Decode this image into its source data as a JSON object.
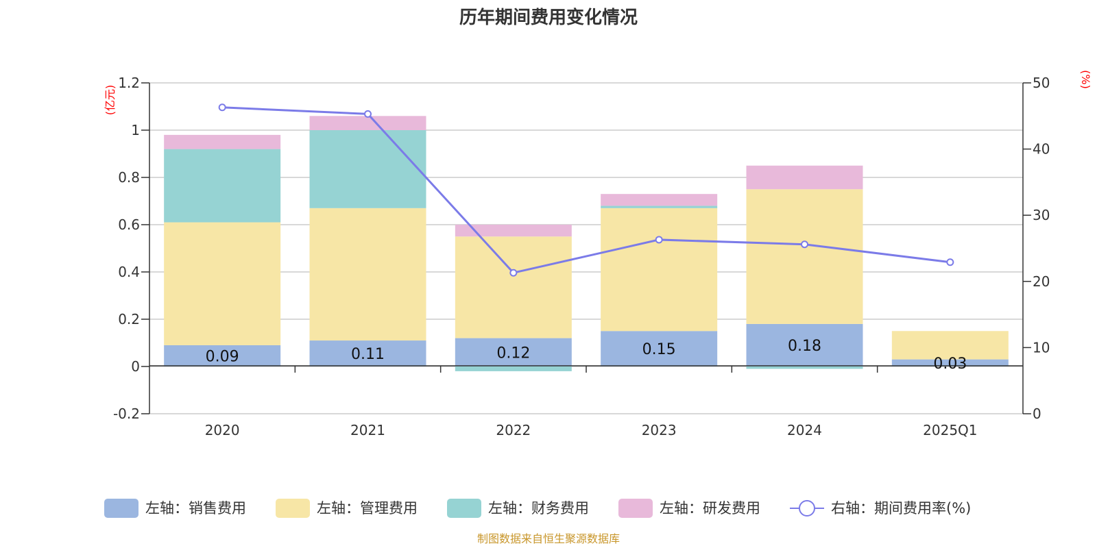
{
  "chart_data": {
    "type": "bar",
    "title": "历年期间费用变化情况",
    "categories": [
      "2020",
      "2021",
      "2022",
      "2023",
      "2024",
      "2025Q1"
    ],
    "left_axis": {
      "unit": "(亿元)",
      "ylim": [
        -0.2,
        1.2
      ],
      "ticks": [
        "-0.2",
        "0",
        "0.2",
        "0.4",
        "0.6",
        "0.8",
        "1",
        "1.2"
      ]
    },
    "right_axis": {
      "unit": "(%)",
      "ylim": [
        0,
        50
      ],
      "ticks": [
        "0",
        "10",
        "20",
        "30",
        "40",
        "50"
      ]
    },
    "series": [
      {
        "name": "左轴：销售费用",
        "type": "bar",
        "color": "#9bb6e0",
        "values": [
          0.09,
          0.11,
          0.12,
          0.15,
          0.18,
          0.03
        ],
        "labels": [
          "0.09",
          "0.11",
          "0.12",
          "0.15",
          "0.18",
          "0.03"
        ]
      },
      {
        "name": "左轴：管理费用",
        "type": "bar",
        "color": "#f7e6a6",
        "values": [
          0.52,
          0.56,
          0.43,
          0.52,
          0.57,
          0.12
        ]
      },
      {
        "name": "左轴：财务费用",
        "type": "bar",
        "color": "#96d3d3",
        "values": [
          0.31,
          0.33,
          -0.02,
          0.01,
          -0.01,
          0.0
        ]
      },
      {
        "name": "左轴：研发费用",
        "type": "bar",
        "color": "#e8b9da",
        "values": [
          0.06,
          0.06,
          0.05,
          0.05,
          0.1,
          0.0
        ]
      },
      {
        "name": "右轴：期间费用率(%)",
        "type": "line",
        "color": "#7b7be8",
        "values": [
          46.3,
          45.3,
          21.3,
          26.3,
          25.6,
          22.9
        ]
      }
    ],
    "source": "制图数据来自恒生聚源数据库"
  }
}
